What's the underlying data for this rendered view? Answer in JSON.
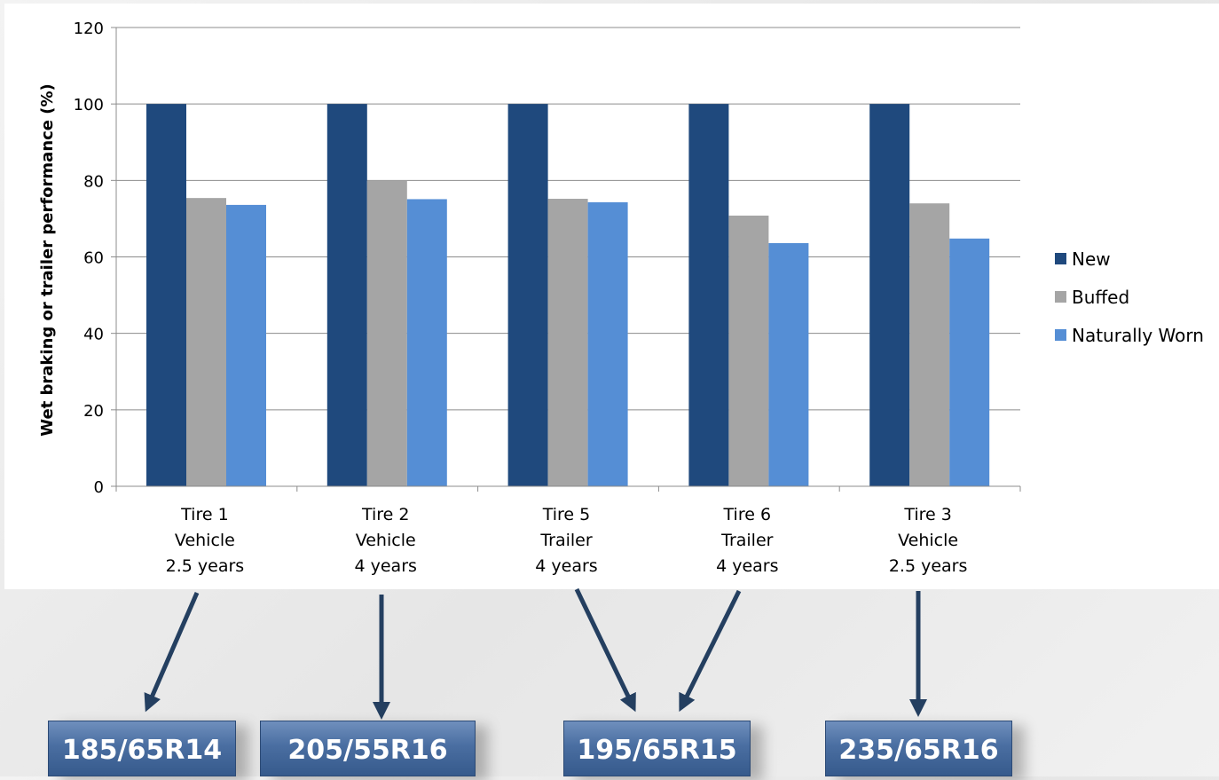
{
  "chart_data": {
    "type": "bar",
    "ylabel": "Wet braking or trailer performance (%)",
    "ylim": [
      0,
      120
    ],
    "yticks": [
      0,
      20,
      40,
      60,
      80,
      100,
      120
    ],
    "categories": [
      [
        "Tire 1",
        "Vehicle",
        "2.5 years"
      ],
      [
        "Tire 2",
        "Vehicle",
        "4 years"
      ],
      [
        "Tire 5",
        "Trailer",
        "4 years"
      ],
      [
        "Tire 6",
        "Trailer",
        "4 years"
      ],
      [
        "Tire 3",
        "Vehicle",
        "2.5 years"
      ]
    ],
    "series": [
      {
        "name": "New",
        "color": "#1f497d",
        "values": [
          100,
          100,
          100,
          100,
          100
        ]
      },
      {
        "name": "Buffed",
        "color": "#a5a5a5",
        "values": [
          75.4,
          80,
          75.2,
          70.8,
          74
        ]
      },
      {
        "name": "Naturally Worn",
        "color": "#558ed5",
        "values": [
          73.6,
          75.1,
          74.3,
          63.6,
          64.8
        ]
      }
    ],
    "grid": true,
    "legend": "right"
  },
  "tire_sizes": [
    "185/65R14",
    "205/55R16",
    "195/65R15",
    "235/65R16"
  ],
  "colors": {
    "arrow": "#243f60",
    "box": "#4a6ea1"
  }
}
